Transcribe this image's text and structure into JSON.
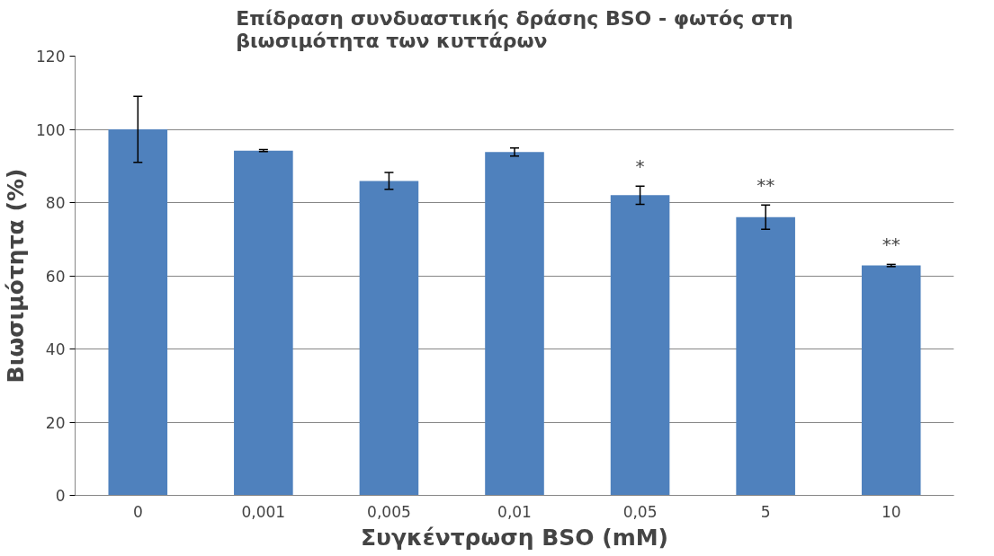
{
  "chart_data": {
    "type": "bar",
    "title": "Επίδραση συνδυαστικής δράσης BSO - φωτός στη\nβιωσιμότητα των κυττάρων",
    "xlabel": "Συγκέντρωση BSO (mM)",
    "ylabel": "Βιωσιμότητα (%)",
    "categories": [
      "0",
      "0,001",
      "0,005",
      "0,01",
      "0,05",
      "5",
      "10"
    ],
    "values": [
      100,
      94.2,
      85.9,
      93.8,
      82,
      76,
      62.8
    ],
    "errors": [
      9,
      0.3,
      2.3,
      1.1,
      2.5,
      3.3,
      0.3
    ],
    "color": "#4f81bd",
    "ylim": [
      0,
      120
    ],
    "yticks": [
      0,
      20,
      40,
      60,
      80,
      100,
      120
    ],
    "grid": "y",
    "annotations": [
      {
        "text": "*",
        "x": "0,05",
        "y": 82
      },
      {
        "text": "**",
        "x": "5",
        "y": 76
      },
      {
        "text": "**",
        "x": "10",
        "y": 62.8
      }
    ]
  }
}
